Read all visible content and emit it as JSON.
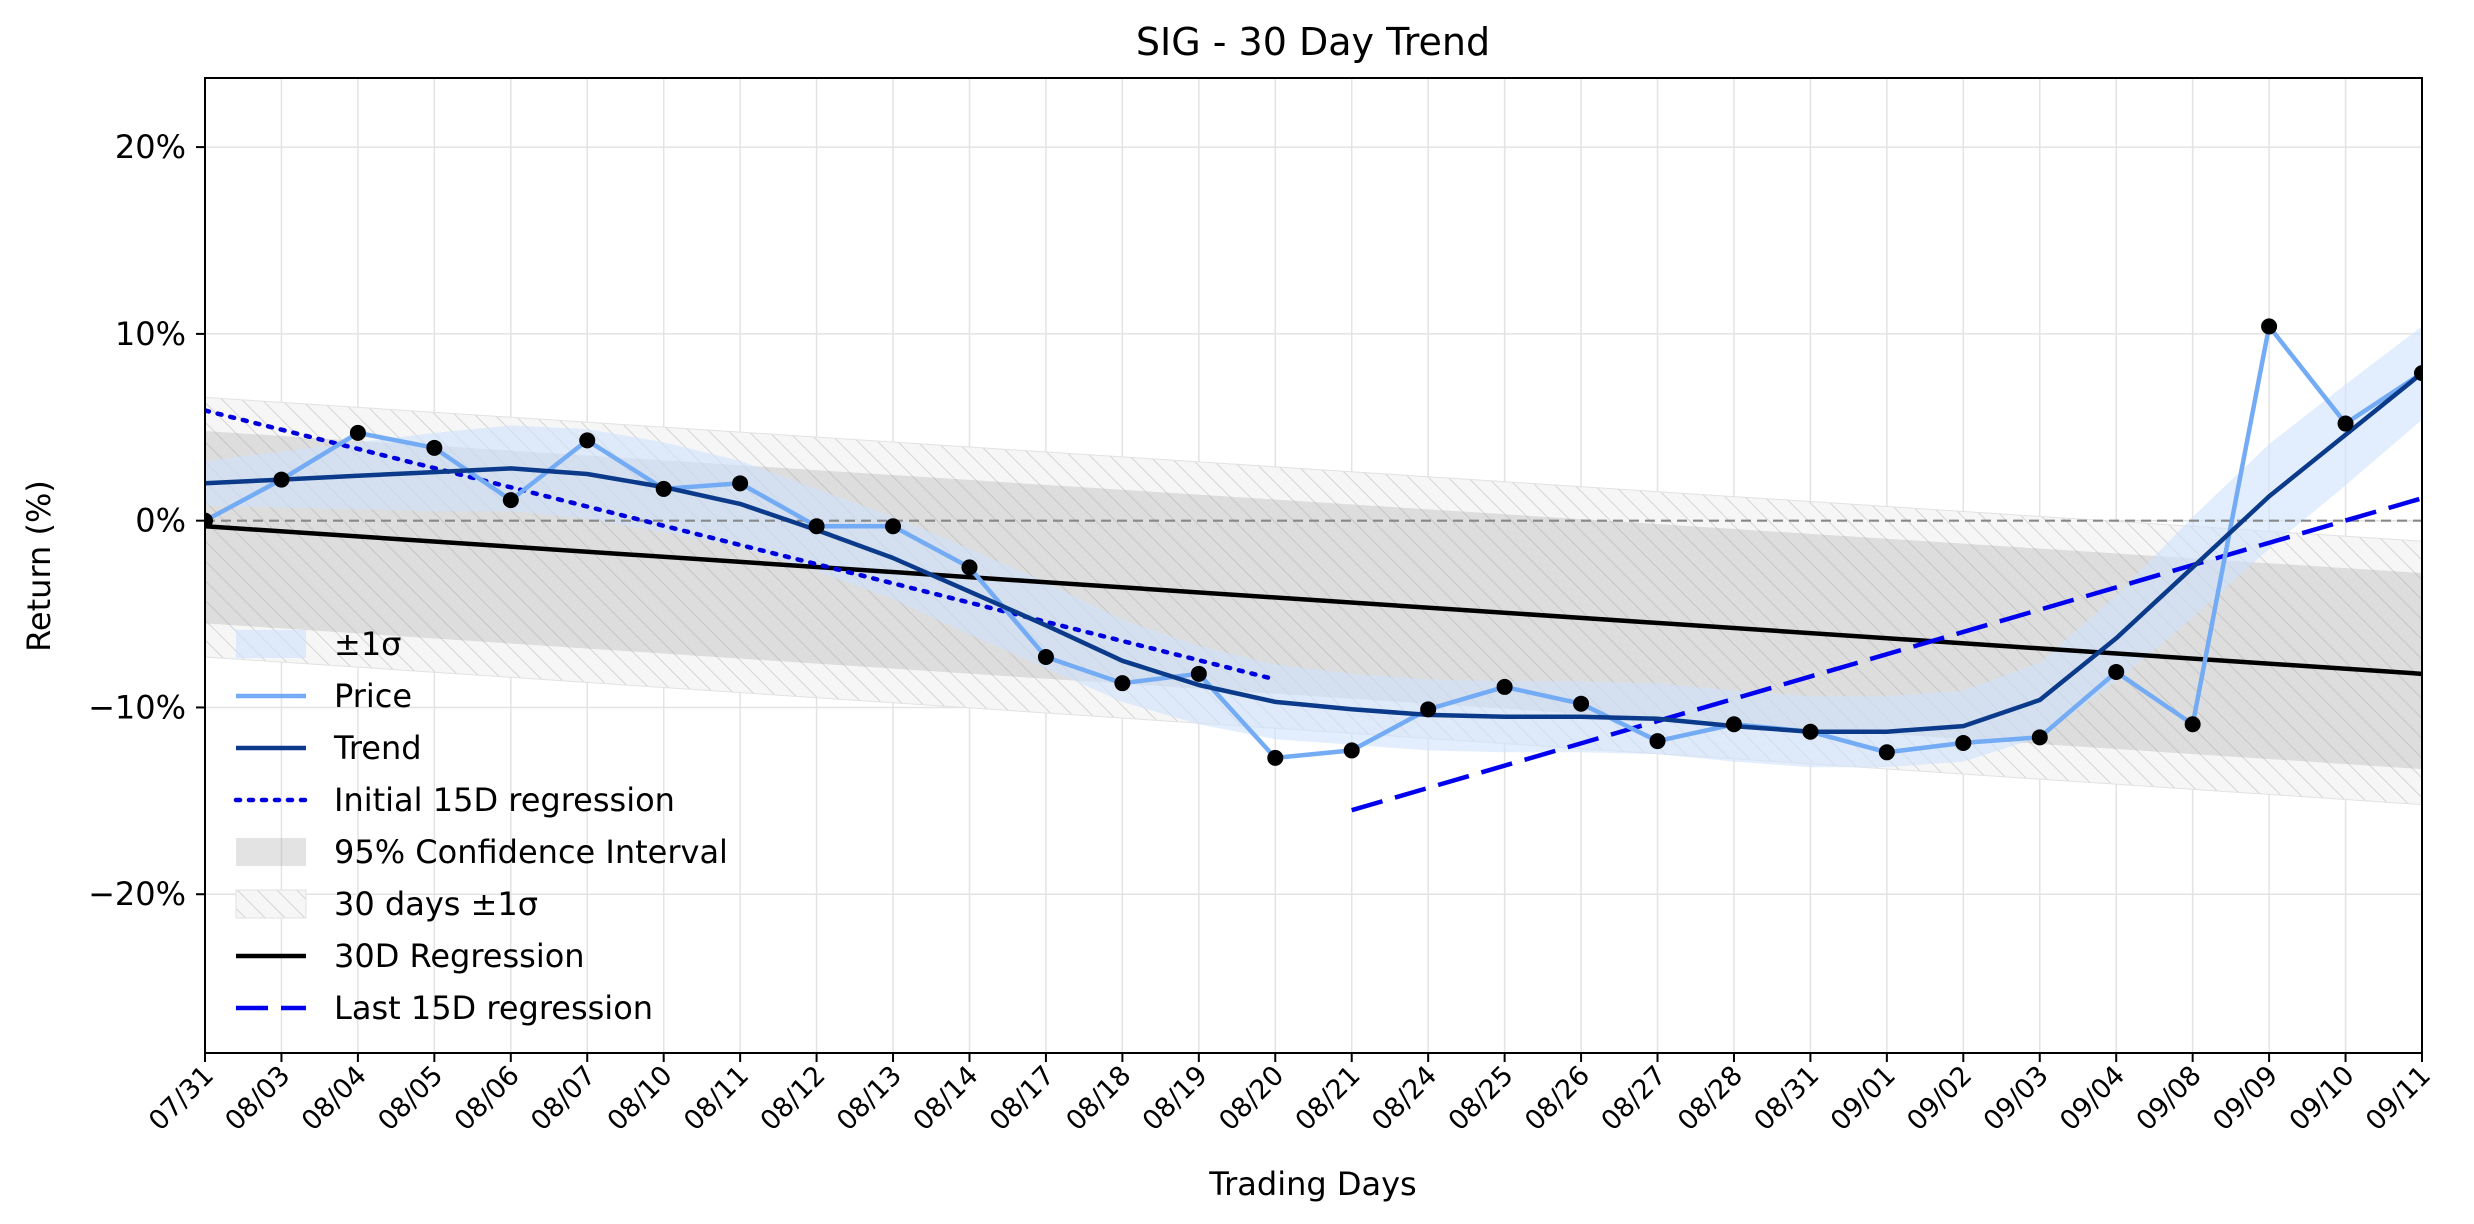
{
  "chart_data": {
    "type": "line",
    "title": "SIG - 30 Day Trend",
    "xlabel": "Trading Days",
    "ylabel": "Return (%)",
    "ylim": [
      -28.5,
      23.7
    ],
    "yticks": [
      20,
      10,
      0,
      -10,
      -20
    ],
    "ytick_labels": [
      "20%",
      "10%",
      "0%",
      "−10%",
      "−20%"
    ],
    "categories": [
      "07/31",
      "08/03",
      "08/04",
      "08/05",
      "08/06",
      "08/07",
      "08/10",
      "08/11",
      "08/12",
      "08/13",
      "08/14",
      "08/17",
      "08/18",
      "08/19",
      "08/20",
      "08/21",
      "08/24",
      "08/25",
      "08/26",
      "08/27",
      "08/28",
      "08/31",
      "09/01",
      "09/02",
      "09/03",
      "09/04",
      "09/08",
      "09/09",
      "09/10",
      "09/11"
    ],
    "grid": true,
    "legend_position": "lower-left",
    "colors": {
      "price": "#74abf5",
      "trend": "#0b3a8a",
      "sigma_band": "#cfe3fb",
      "initial_reg": "#0000dd",
      "last_reg": "#0000ee",
      "reg30": "#000000",
      "ci": "#a9a9a9",
      "zero_line": "#888888",
      "marker": "#000000"
    },
    "series": [
      {
        "name": "Price",
        "values": [
          0.0,
          2.2,
          4.7,
          3.9,
          1.1,
          4.3,
          1.7,
          2.0,
          -0.3,
          -0.3,
          -2.5,
          -7.3,
          -8.7,
          -8.2,
          -12.7,
          -12.3,
          -10.1,
          -8.9,
          -9.8,
          -11.8,
          -10.9,
          -11.3,
          -12.4,
          -11.9,
          -11.6,
          -8.1,
          -10.9,
          10.4,
          5.2,
          7.9
        ]
      },
      {
        "name": "Trend",
        "values": [
          2.0,
          2.2,
          2.4,
          2.6,
          2.8,
          2.5,
          1.8,
          0.9,
          -0.5,
          -2.0,
          -3.8,
          -5.6,
          -7.5,
          -8.8,
          -9.7,
          -10.1,
          -10.4,
          -10.5,
          -10.5,
          -10.6,
          -11.0,
          -11.3,
          -11.3,
          -11.0,
          -9.6,
          -6.3,
          -2.5,
          1.3,
          4.6,
          7.9
        ]
      },
      {
        "name": "Initial 15D regression",
        "x_range": [
          0,
          14
        ],
        "y_range": [
          5.9,
          -8.5
        ]
      },
      {
        "name": "Last 15D regression",
        "x_range": [
          15,
          29
        ],
        "y_range": [
          -15.5,
          1.2
        ]
      },
      {
        "name": "30D Regression",
        "x_range": [
          0,
          29
        ],
        "y_range": [
          -0.3,
          -8.2
        ]
      },
      {
        "name": "±1σ",
        "half_width": [
          1.2,
          1.5,
          1.8,
          2.1,
          2.3,
          2.4,
          2.4,
          2.3,
          2.2,
          2.2,
          2.3,
          2.3,
          2.2,
          2.1,
          2.0,
          1.9,
          1.9,
          1.9,
          1.9,
          1.9,
          1.9,
          1.9,
          1.9,
          1.9,
          2.0,
          2.3,
          2.7,
          2.8,
          2.7,
          2.5
        ]
      },
      {
        "name": "95% Confidence Interval",
        "upper_range": [
          4.8,
          -2.8
        ],
        "lower_range": [
          -5.5,
          -13.3
        ]
      },
      {
        "name": "30 days ±1σ",
        "upper_range": [
          6.6,
          -1.1
        ],
        "lower_range": [
          -7.3,
          -15.2
        ]
      }
    ],
    "legend": [
      "±1σ",
      "Price",
      "Trend",
      "Initial 15D regression",
      "95% Confidence Interval",
      "30 days ±1σ",
      "30D Regression",
      "Last 15D regression"
    ]
  }
}
